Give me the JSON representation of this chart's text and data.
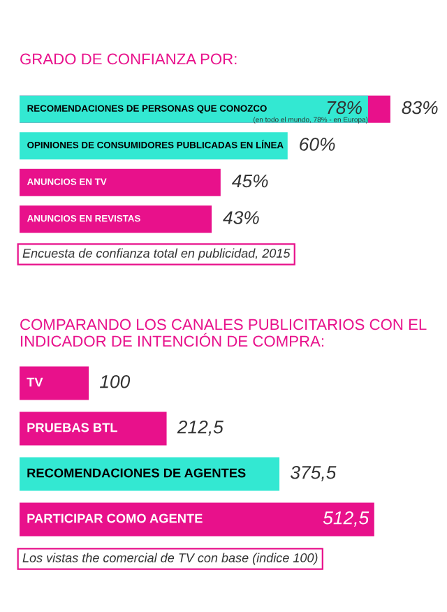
{
  "chart_data": [
    {
      "type": "bar",
      "orientation": "horizontal",
      "title": "GRADO DE CONFIANZA POR:",
      "categories": [
        "RECOMENDACIONES DE PERSONAS QUE CONOZCO",
        "OPINIONES DE CONSUMIDORES PUBLICADAS EN LÍNEA",
        "ANUNCIOS EN TV",
        "ANUNCIOS EN REVISTAS"
      ],
      "series": [
        {
          "color": "#e8118b",
          "values": [
            83,
            null,
            45,
            43
          ],
          "value_labels": [
            "83%",
            null,
            "45%",
            "43%"
          ]
        },
        {
          "color": "#33e8d2",
          "values": [
            78,
            60,
            null,
            null
          ],
          "value_labels": [
            "78%",
            "60%",
            null,
            null
          ]
        }
      ],
      "annotations": [
        {
          "text": "(en todo el mundo, 78% - en Europa)",
          "x": 78,
          "y": "RECOMENDACIONES DE PERSONAS QUE CONOZCO"
        },
        "Encuesta de confianza total en publicidad, 2015"
      ]
    },
    {
      "type": "bar",
      "orientation": "horizontal",
      "title": "COMPARANDO LOS CANALES PUBLICITARIOS CON EL INDICADOR DE INTENCIÓN DE COMPRA:",
      "categories": [
        "TV",
        "PRUEBAS BTL",
        "RECOMENDACIONES DE AGENTES",
        "PARTICIPAR COMO AGENTE"
      ],
      "values": [
        100,
        212.5,
        375.5,
        512.5
      ],
      "colors": [
        "#e8118b",
        "#e8118b",
        "#33e8d2",
        "#e8118b"
      ],
      "value_labels": [
        "100",
        "212,5",
        "375,5",
        "512,5"
      ],
      "annotations": [
        "Los vistas the comercial de TV con base (indice 100)"
      ]
    }
  ]
}
